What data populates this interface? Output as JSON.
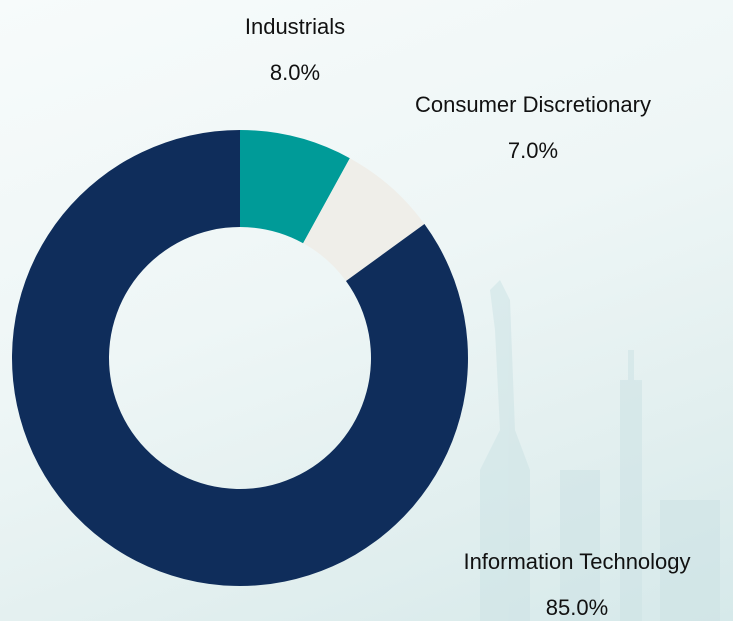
{
  "chart_data": {
    "type": "donut",
    "categories": [
      "Industrials",
      "Consumer Discretionary",
      "Information Technology"
    ],
    "values": [
      8.0,
      7.0,
      85.0
    ],
    "value_labels": [
      "8.0%",
      "7.0%",
      "85.0%"
    ],
    "colors": [
      "#009b98",
      "#efeee9",
      "#0f2d5b"
    ]
  }
}
